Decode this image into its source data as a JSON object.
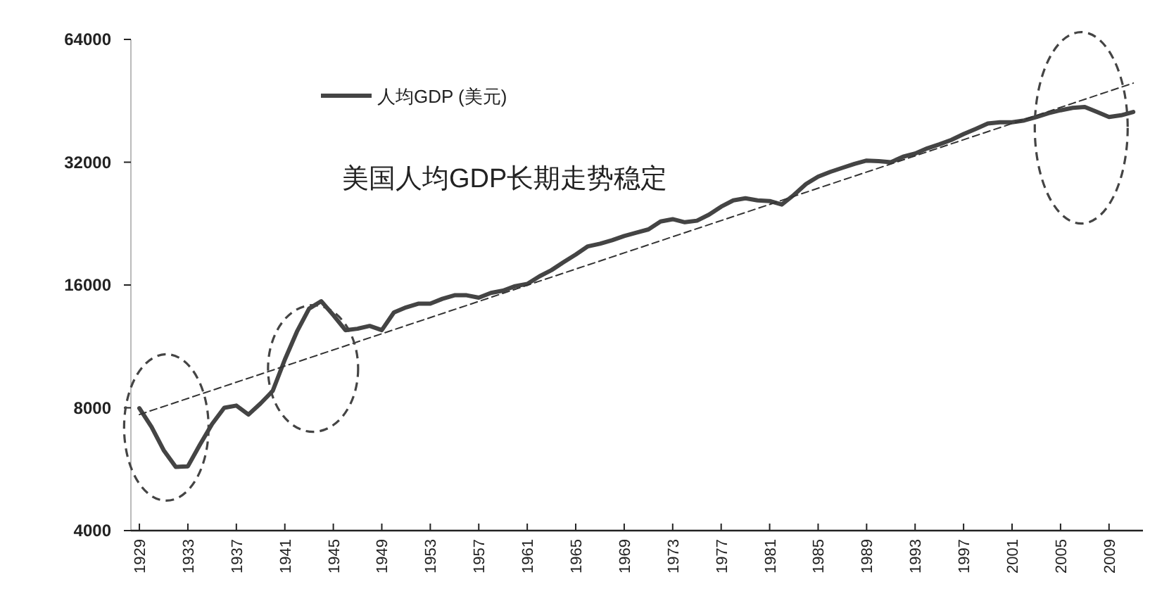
{
  "chart_data": {
    "type": "line",
    "log": "y",
    "legend": "top left",
    "annotations": [
      "美国人均GDP长期走势稳定"
    ],
    "xlim": [
      1928.3,
      2011.8
    ],
    "ylim": [
      4000,
      64000
    ],
    "xticks": [
      1929,
      1933,
      1937,
      1941,
      1945,
      1949,
      1953,
      1957,
      1961,
      1965,
      1969,
      1973,
      1977,
      1981,
      1985,
      1989,
      1993,
      1997,
      2001,
      2005,
      2009
    ],
    "yticks": [
      4000,
      8000,
      16000,
      32000,
      64000
    ],
    "series": [
      {
        "name": "人均GDP (美元)",
        "color": "#444444",
        "line_style": "solid",
        "x": [
          1929,
          1930,
          1931,
          1932,
          1933,
          1934,
          1935,
          1936,
          1937,
          1938,
          1939,
          1940,
          1941,
          1942,
          1943,
          1944,
          1945,
          1946,
          1947,
          1948,
          1949,
          1950,
          1951,
          1952,
          1953,
          1954,
          1955,
          1956,
          1957,
          1958,
          1959,
          1960,
          1961,
          1962,
          1963,
          1964,
          1965,
          1966,
          1967,
          1968,
          1969,
          1970,
          1971,
          1972,
          1973,
          1974,
          1975,
          1976,
          1977,
          1978,
          1979,
          1980,
          1981,
          1982,
          1983,
          1984,
          1985,
          1986,
          1987,
          1988,
          1989,
          1990,
          1991,
          1992,
          1993,
          1994,
          1995,
          1996,
          1997,
          1998,
          1999,
          2000,
          2001,
          2002,
          2003,
          2004,
          2005,
          2006,
          2007,
          2008,
          2009,
          2010,
          2011
        ],
        "values": [
          7980,
          7180,
          6300,
          5730,
          5750,
          6500,
          7300,
          8000,
          8100,
          7700,
          8200,
          8800,
          10500,
          12300,
          14000,
          14600,
          13500,
          12400,
          12500,
          12700,
          12400,
          13700,
          14100,
          14400,
          14400,
          14800,
          15100,
          15100,
          14900,
          15300,
          15500,
          15900,
          16100,
          16800,
          17400,
          18200,
          19000,
          19900,
          20200,
          20600,
          21100,
          21500,
          21900,
          22900,
          23200,
          22800,
          23000,
          23800,
          24900,
          25800,
          26100,
          25800,
          25700,
          25200,
          26600,
          28300,
          29500,
          30300,
          31000,
          31700,
          32300,
          32200,
          32000,
          33000,
          33600,
          34600,
          35400,
          36300,
          37500,
          38600,
          39800,
          40100,
          40100,
          40500,
          41300,
          42200,
          42900,
          43500,
          43700,
          42500,
          41300,
          41700,
          42500
        ]
      },
      {
        "color": "#333333",
        "line_style": "dashed",
        "x": [
          1929,
          2011
        ],
        "values": [
          7700,
          50000
        ]
      }
    ]
  }
}
